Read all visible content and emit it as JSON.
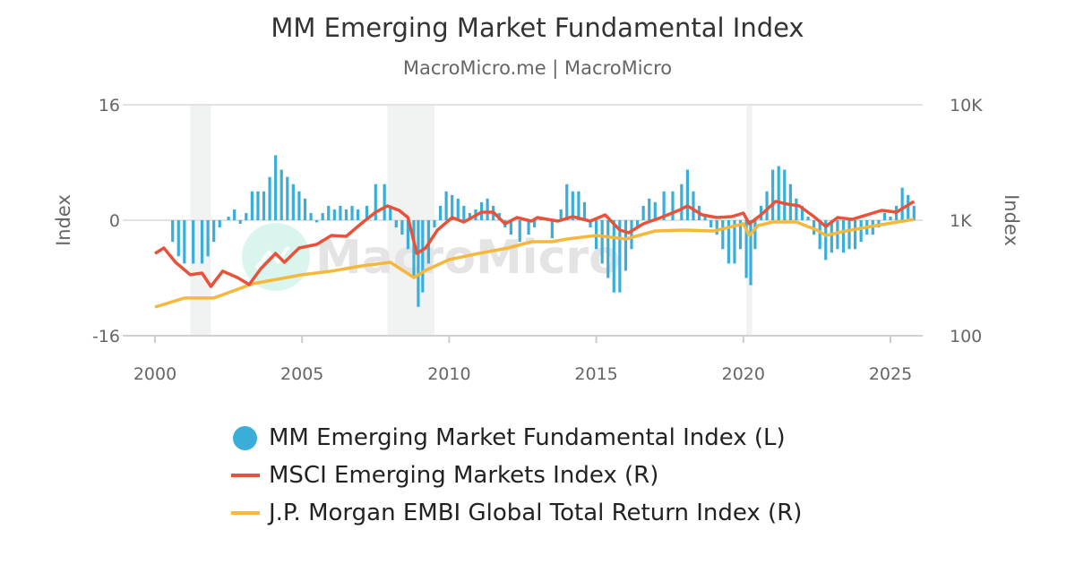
{
  "chart_data": {
    "type": "bar+line",
    "title": "MM Emerging Market Fundamental Index",
    "subtitle": "MacroMicro.me | MacroMicro",
    "watermark": "MacroMicro",
    "xlabel": "",
    "ylabel_left": "Index",
    "ylabel_right": "Index",
    "xlim": [
      2000,
      2026
    ],
    "x_ticks": [
      "2000",
      "2005",
      "2010",
      "2015",
      "2020",
      "2025"
    ],
    "ylim_left": [
      -16,
      16
    ],
    "y_ticks_left": [
      "16",
      "0",
      "-16"
    ],
    "ylim_right": [
      100,
      10000
    ],
    "y_scale_right": "log",
    "y_ticks_right": [
      "10K",
      "1K",
      "100"
    ],
    "grid": true,
    "legend_position": "bottom",
    "shaded_periods": [
      [
        2001.2,
        2001.9
      ],
      [
        2007.9,
        2009.5
      ],
      [
        2020.1,
        2020.3
      ]
    ],
    "series": [
      {
        "name": "MM Emerging Market Fundamental Index (L)",
        "type": "bar",
        "axis": "left",
        "color": "#3aaed8",
        "x": [
          2000.6,
          2000.8,
          2001.0,
          2001.3,
          2001.6,
          2001.8,
          2002.0,
          2002.2,
          2002.5,
          2002.7,
          2002.9,
          2003.1,
          2003.3,
          2003.5,
          2003.7,
          2003.9,
          2004.1,
          2004.3,
          2004.5,
          2004.7,
          2004.9,
          2005.1,
          2005.3,
          2005.5,
          2005.7,
          2005.9,
          2006.1,
          2006.3,
          2006.5,
          2006.7,
          2006.9,
          2007.2,
          2007.5,
          2007.8,
          2008.0,
          2008.2,
          2008.4,
          2008.6,
          2008.8,
          2008.95,
          2009.1,
          2009.3,
          2009.5,
          2009.7,
          2009.9,
          2010.1,
          2010.3,
          2010.5,
          2010.7,
          2010.9,
          2011.1,
          2011.3,
          2011.5,
          2011.7,
          2011.9,
          2012.1,
          2012.4,
          2012.7,
          2012.9,
          2013.1,
          2013.5,
          2013.8,
          2014.0,
          2014.2,
          2014.4,
          2014.6,
          2014.8,
          2015.0,
          2015.2,
          2015.4,
          2015.6,
          2015.8,
          2016.0,
          2016.2,
          2016.4,
          2016.6,
          2016.8,
          2017.0,
          2017.3,
          2017.6,
          2017.9,
          2018.1,
          2018.3,
          2018.5,
          2018.7,
          2018.9,
          2019.1,
          2019.3,
          2019.5,
          2019.7,
          2019.9,
          2020.1,
          2020.25,
          2020.4,
          2020.6,
          2020.8,
          2021.0,
          2021.2,
          2021.4,
          2021.6,
          2021.8,
          2022.0,
          2022.2,
          2022.4,
          2022.6,
          2022.8,
          2023.0,
          2023.2,
          2023.4,
          2023.6,
          2023.8,
          2024.0,
          2024.2,
          2024.4,
          2024.6,
          2024.8,
          2025.0,
          2025.2,
          2025.4,
          2025.6,
          2025.8
        ],
        "values": [
          -3,
          -5,
          -6,
          -6,
          -6,
          -5,
          -3,
          -1,
          0.5,
          1.5,
          -0.5,
          1,
          4,
          4,
          4,
          6,
          9,
          7,
          6,
          5,
          4,
          3,
          1,
          -0.3,
          1,
          2,
          1.5,
          2,
          1.5,
          2,
          1.5,
          2,
          5,
          5,
          2,
          -1,
          -2,
          -4,
          -8,
          -12,
          -10,
          -6,
          -1,
          2,
          4,
          3.5,
          3,
          2,
          1,
          1.5,
          2.5,
          3,
          2,
          1,
          -1,
          -2,
          -3,
          -2,
          -1,
          0.5,
          -2.5,
          1.5,
          5,
          4,
          4,
          2.5,
          -1,
          -4,
          -6,
          -8,
          -10,
          -10,
          -7,
          -4,
          -1,
          2,
          3,
          2.5,
          4,
          4,
          5,
          7,
          4,
          2,
          0.5,
          -1,
          -2,
          -4,
          -6,
          -6,
          -4,
          -8,
          -9,
          -4,
          2,
          4,
          7,
          7.5,
          7,
          5,
          3,
          2,
          0.5,
          -2,
          -4,
          -5.5,
          -4.5,
          -4,
          -4.5,
          -4,
          -4,
          -3,
          -2,
          -2,
          -1,
          1,
          0.5,
          2,
          4.5,
          3.5,
          2
        ]
      },
      {
        "name": "MSCI Emerging Markets Index (R)",
        "type": "line",
        "axis": "right",
        "color": "#e8523a",
        "x": [
          2000.0,
          2000.3,
          2000.7,
          2001.2,
          2001.6,
          2001.9,
          2002.3,
          2002.8,
          2003.2,
          2003.6,
          2004.1,
          2004.4,
          2004.9,
          2005.5,
          2006.0,
          2006.5,
          2007.0,
          2007.5,
          2007.9,
          2008.3,
          2008.6,
          2008.9,
          2009.2,
          2009.6,
          2010.1,
          2010.5,
          2011.1,
          2011.5,
          2011.9,
          2012.3,
          2012.8,
          2013.0,
          2013.7,
          2014.2,
          2014.8,
          2015.3,
          2015.8,
          2016.1,
          2016.6,
          2017.2,
          2017.8,
          2018.1,
          2018.6,
          2019.1,
          2019.6,
          2020.0,
          2020.2,
          2020.6,
          2021.1,
          2021.5,
          2021.9,
          2022.4,
          2022.8,
          2023.2,
          2023.7,
          2024.2,
          2024.7,
          2025.2,
          2025.8
        ],
        "values": [
          516,
          575,
          432,
          337,
          349,
          267,
          362,
          319,
          277,
          381,
          516,
          432,
          575,
          618,
          738,
          725,
          931,
          1174,
          1330,
          1217,
          1055,
          516,
          575,
          822,
          1055,
          965,
          1174,
          1174,
          931,
          1055,
          982,
          1055,
          982,
          1074,
          982,
          1113,
          822,
          779,
          931,
          1055,
          1217,
          1330,
          1113,
          1055,
          1074,
          1153,
          931,
          1113,
          1455,
          1379,
          1330,
          1074,
          883,
          1055,
          1018,
          1113,
          1217,
          1174,
          1455
        ]
      },
      {
        "name": "J.P. Morgan EMBI Global Total Return Index (R)",
        "type": "line",
        "axis": "right",
        "color": "#f5b83d",
        "x": [
          2000.0,
          2001.0,
          2002.0,
          2002.5,
          2003.3,
          2004.0,
          2005.0,
          2006.0,
          2007.0,
          2008.0,
          2008.8,
          2009.2,
          2010.0,
          2011.0,
          2012.0,
          2012.8,
          2013.5,
          2014.0,
          2015.0,
          2016.0,
          2017.0,
          2018.0,
          2019.0,
          2020.0,
          2020.2,
          2020.5,
          2021.0,
          2021.8,
          2022.5,
          2022.8,
          2023.5,
          2024.5,
          2025.8
        ],
        "values": [
          177,
          212,
          212,
          236,
          281,
          303,
          337,
          362,
          402,
          432,
          319,
          368,
          456,
          516,
          575,
          652,
          652,
          688,
          738,
          688,
          807,
          822,
          807,
          931,
          738,
          899,
          965,
          965,
          822,
          738,
          807,
          899,
          1018
        ]
      }
    ]
  }
}
